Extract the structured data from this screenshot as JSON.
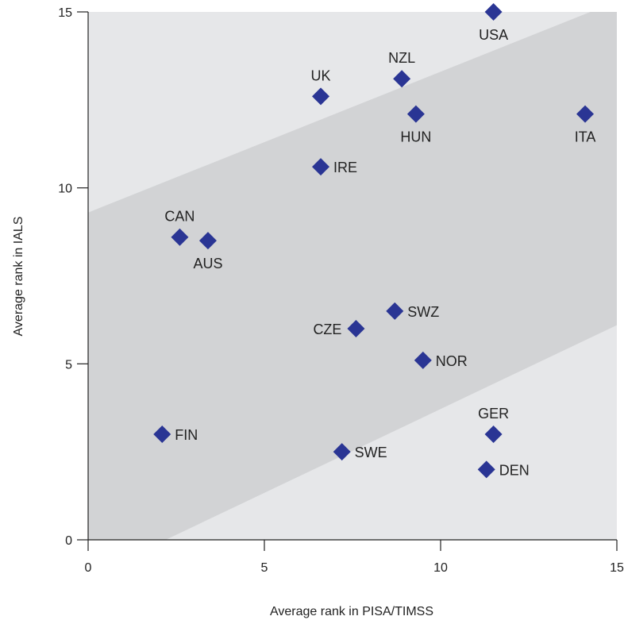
{
  "chart_data": {
    "type": "scatter",
    "xlabel": "Average rank in PISA/TIMSS",
    "ylabel": "Average rank in IALS",
    "xlim": [
      0,
      15
    ],
    "ylim": [
      0,
      15
    ],
    "xticks": [
      "0",
      "5",
      "10",
      "15"
    ],
    "yticks": [
      "0",
      "5",
      "10",
      "15"
    ],
    "grid": false,
    "band": {
      "description_free": true,
      "upper_line": [
        [
          0,
          9.3
        ],
        [
          15,
          15.3
        ]
      ],
      "lower_line": [
        [
          2.2,
          0
        ],
        [
          15,
          6.1
        ]
      ]
    },
    "points": [
      {
        "label": "USA",
        "x": 11.5,
        "y": 15.0,
        "label_pos": "below"
      },
      {
        "label": "NZL",
        "x": 8.9,
        "y": 13.1,
        "label_pos": "above"
      },
      {
        "label": "UK",
        "x": 6.6,
        "y": 12.6,
        "label_pos": "above"
      },
      {
        "label": "HUN",
        "x": 9.3,
        "y": 12.1,
        "label_pos": "below"
      },
      {
        "label": "ITA",
        "x": 14.1,
        "y": 12.1,
        "label_pos": "below"
      },
      {
        "label": "IRE",
        "x": 6.6,
        "y": 10.6,
        "label_pos": "right"
      },
      {
        "label": "CAN",
        "x": 2.6,
        "y": 8.6,
        "label_pos": "above"
      },
      {
        "label": "AUS",
        "x": 3.4,
        "y": 8.5,
        "label_pos": "below"
      },
      {
        "label": "SWZ",
        "x": 8.7,
        "y": 6.5,
        "label_pos": "right"
      },
      {
        "label": "CZE",
        "x": 7.6,
        "y": 6.0,
        "label_pos": "left"
      },
      {
        "label": "NOR",
        "x": 9.5,
        "y": 5.1,
        "label_pos": "right"
      },
      {
        "label": "GER",
        "x": 11.5,
        "y": 3.0,
        "label_pos": "above"
      },
      {
        "label": "FIN",
        "x": 2.1,
        "y": 3.0,
        "label_pos": "right"
      },
      {
        "label": "SWE",
        "x": 7.2,
        "y": 2.5,
        "label_pos": "right"
      },
      {
        "label": "DEN",
        "x": 11.3,
        "y": 2.0,
        "label_pos": "right"
      }
    ],
    "colors": {
      "plot_bg": "#e6e7e9",
      "band": "#d2d3d5",
      "marker": "#2a3594",
      "axis": "#222222"
    }
  }
}
